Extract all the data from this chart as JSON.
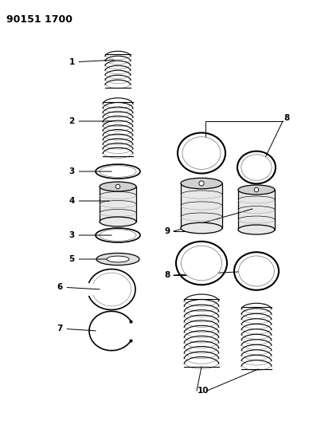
{
  "title": "90151 1700",
  "background_color": "#ffffff",
  "line_color": "#000000",
  "fig_width": 3.93,
  "fig_height": 5.33,
  "dpi": 100
}
